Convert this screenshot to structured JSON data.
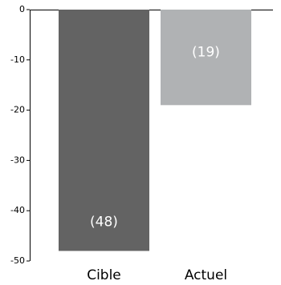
{
  "chart_data": {
    "type": "bar",
    "categories": [
      "Cible",
      "Actuel"
    ],
    "values": [
      -48,
      -19
    ],
    "value_labels": [
      "(48)",
      "(19)"
    ],
    "colors": [
      "#636363",
      "#b0b2b4"
    ],
    "ylim": [
      -50,
      0
    ],
    "yticks": [
      0,
      -10,
      -20,
      -30,
      -40,
      -50
    ]
  }
}
